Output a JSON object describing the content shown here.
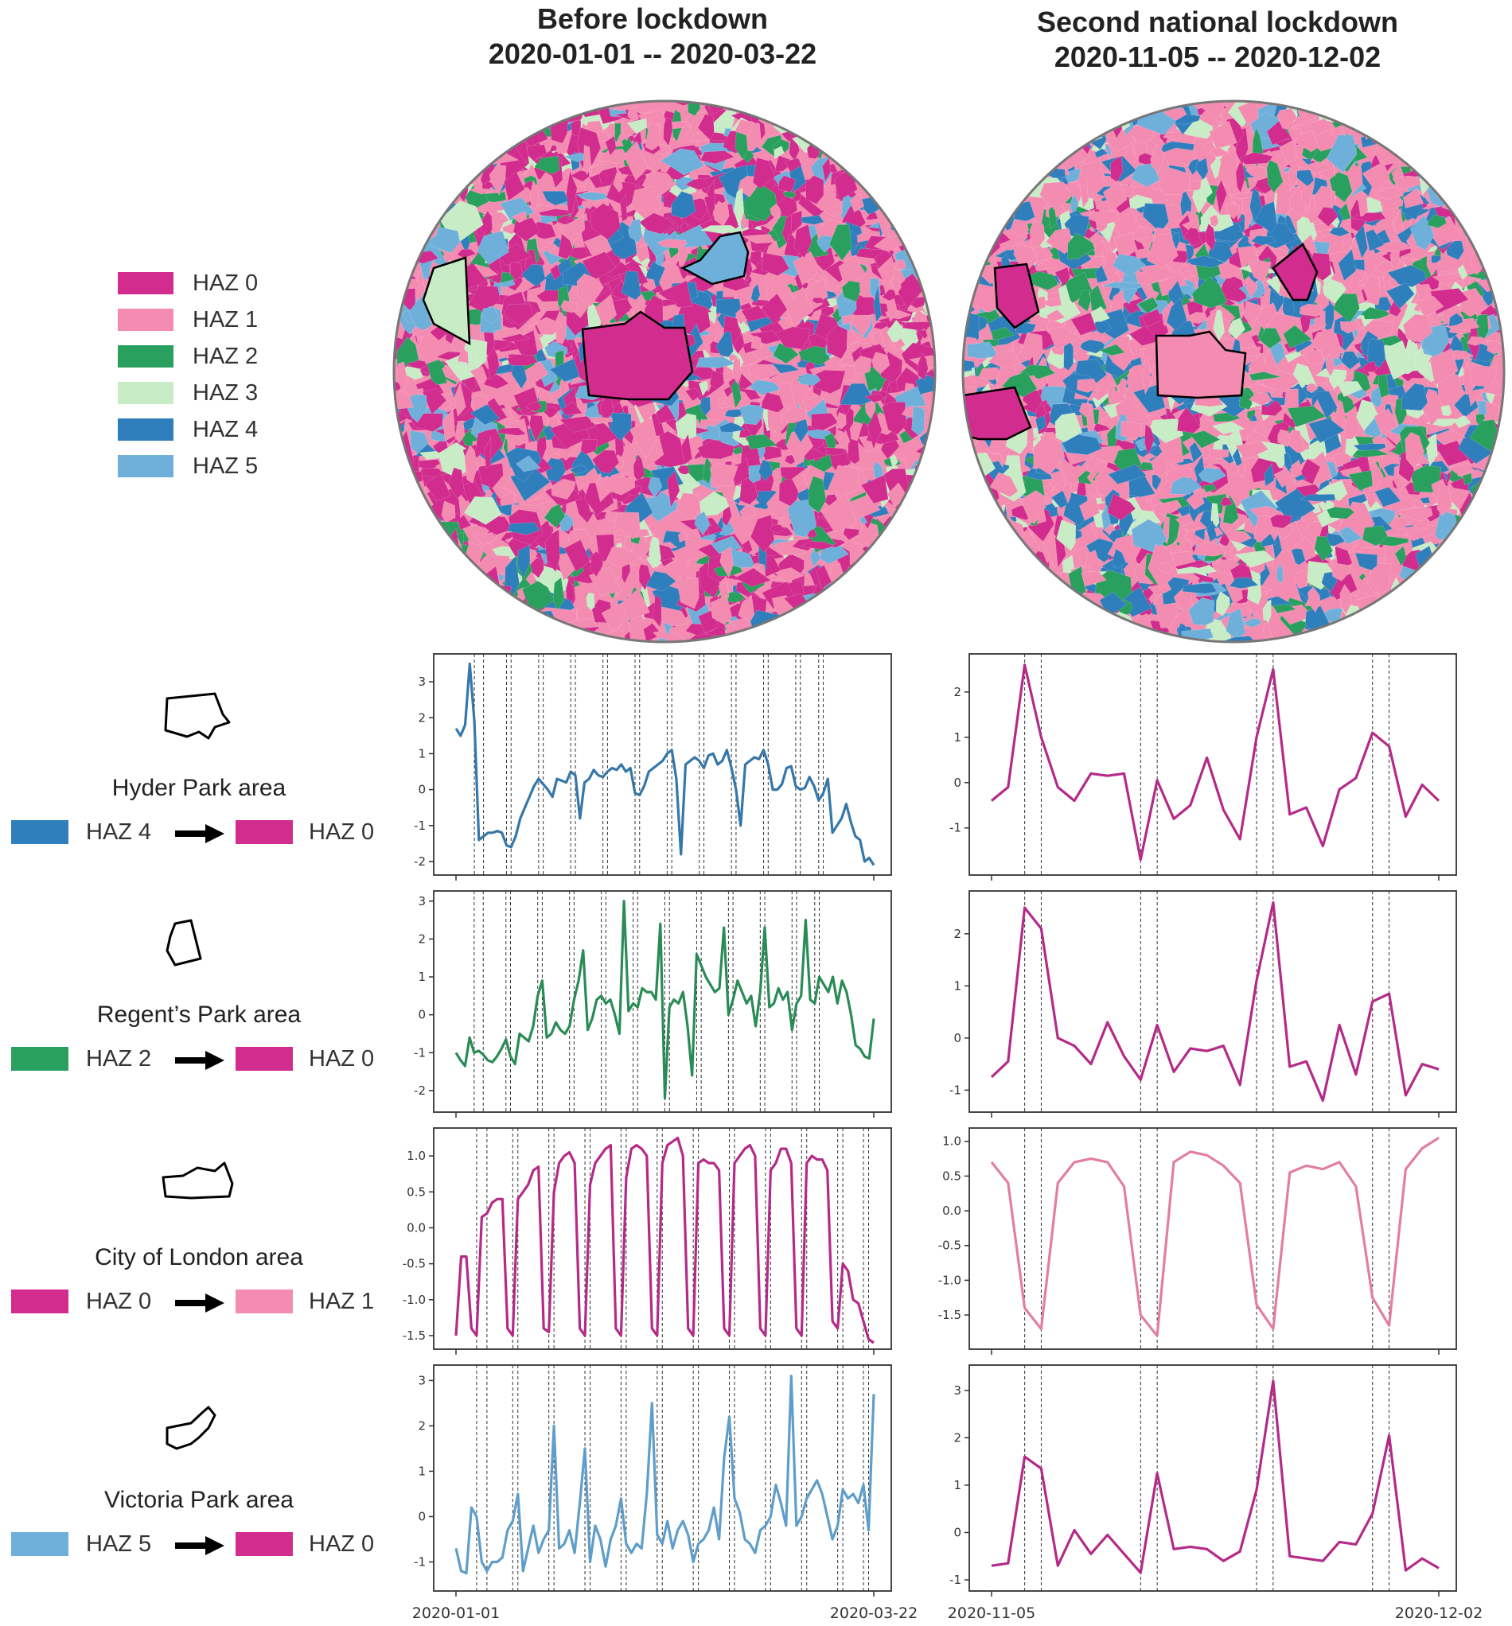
{
  "columns": [
    {
      "title_line1": "Before lockdown",
      "title_line2": "2020-01-01 -- 2020-03-22"
    },
    {
      "title_line1": "Second national lockdown",
      "title_line2": "2020-11-05 -- 2020-12-02"
    }
  ],
  "legend": [
    {
      "label": "HAZ 0",
      "color": "#d12c8e"
    },
    {
      "label": "HAZ 1",
      "color": "#f48bb0"
    },
    {
      "label": "HAZ 2",
      "color": "#2aa05e"
    },
    {
      "label": "HAZ 3",
      "color": "#c8ecc6"
    },
    {
      "label": "HAZ 4",
      "color": "#2f7fbd"
    },
    {
      "label": "HAZ 5",
      "color": "#6fb0db"
    }
  ],
  "areas": [
    {
      "name": "Hyder Park area",
      "from_label": "HAZ 4",
      "from_color": "#2f7fbd",
      "to_label": "HAZ 0",
      "to_color": "#d12c8e"
    },
    {
      "name": "Regent’s Park area",
      "from_label": "HAZ 2",
      "from_color": "#2aa05e",
      "to_label": "HAZ 0",
      "to_color": "#d12c8e"
    },
    {
      "name": "City of London area",
      "from_label": "HAZ 0",
      "from_color": "#d12c8e",
      "to_label": "HAZ 1",
      "to_color": "#f48bb0"
    },
    {
      "name": "Victoria Park area",
      "from_label": "HAZ 5",
      "from_color": "#6fb0db",
      "to_label": "HAZ 0",
      "to_color": "#d12c8e"
    }
  ],
  "maps": [
    {
      "type": "map",
      "description_colors": [
        "#d12c8e",
        "#f48bb0",
        "#2aa05e",
        "#c8ecc6",
        "#2f7fbd",
        "#6fb0db"
      ]
    },
    {
      "type": "map",
      "description_colors": [
        "#d12c8e",
        "#f48bb0",
        "#2aa05e",
        "#c8ecc6",
        "#2f7fbd",
        "#6fb0db"
      ]
    }
  ],
  "chart_data": [
    {
      "type": "line",
      "panel": "left",
      "row": 0,
      "series_color": "#3577a8",
      "x_start": "2020-01-01",
      "x_end": "2020-03-22",
      "xtick_labels": [
        "2020-01-01",
        "2020-03-22"
      ],
      "ylim": [
        -2.2,
        3.6
      ],
      "yticks": [
        -2,
        -1,
        0,
        1,
        2,
        3
      ],
      "vlines": [
        4,
        6,
        11,
        12,
        18,
        19,
        25,
        26,
        32,
        33,
        39,
        40,
        46,
        47,
        53,
        54,
        60,
        61,
        67,
        68,
        74,
        75,
        79,
        80
      ],
      "values": [
        1.7,
        1.5,
        1.8,
        3.5,
        1.9,
        -1.4,
        -1.3,
        -1.2,
        -1.2,
        -1.15,
        -1.2,
        -1.55,
        -1.6,
        -1.3,
        -0.8,
        -0.5,
        -0.2,
        0.1,
        0.3,
        0.15,
        0.0,
        -0.2,
        0.3,
        0.25,
        0.2,
        0.5,
        0.4,
        -0.8,
        0.2,
        0.3,
        0.55,
        0.4,
        0.35,
        0.5,
        0.6,
        0.55,
        0.7,
        0.5,
        0.6,
        -0.1,
        -0.15,
        0.1,
        0.5,
        0.6,
        0.7,
        0.8,
        1.0,
        1.1,
        0.3,
        -1.8,
        0.7,
        0.8,
        0.9,
        0.8,
        0.6,
        0.95,
        1.0,
        0.7,
        0.8,
        1.1,
        0.6,
        0.0,
        -1.0,
        0.7,
        0.8,
        0.9,
        0.85,
        1.1,
        0.7,
        0.0,
        0.0,
        0.15,
        0.6,
        0.65,
        0.1,
        0.0,
        0.05,
        0.35,
        0.1,
        -0.3,
        -0.1,
        0.3,
        -1.2,
        -1.0,
        -0.8,
        -0.4,
        -0.9,
        -1.3,
        -1.4,
        -2.0,
        -1.9,
        -2.1
      ]
    },
    {
      "type": "line",
      "panel": "left",
      "row": 1,
      "series_color": "#2a8c55",
      "x_start": "2020-01-01",
      "x_end": "2020-03-22",
      "xtick_labels": [
        "2020-01-01",
        "2020-03-22"
      ],
      "ylim": [
        -2.4,
        3.1
      ],
      "yticks": [
        -2,
        -1,
        0,
        1,
        2,
        3
      ],
      "vlines": [
        4,
        6,
        11,
        12,
        18,
        19,
        25,
        26,
        32,
        33,
        39,
        40,
        46,
        47,
        53,
        54,
        60,
        61,
        67,
        68,
        74,
        75,
        79,
        80
      ],
      "values": [
        -1.0,
        -1.2,
        -1.35,
        -0.6,
        -1.0,
        -0.95,
        -1.05,
        -1.2,
        -1.25,
        -1.1,
        -0.9,
        -0.65,
        -1.1,
        -1.3,
        -0.5,
        -0.6,
        -0.7,
        -0.3,
        0.5,
        0.9,
        -0.6,
        -0.5,
        -0.2,
        -0.4,
        -0.5,
        -0.3,
        0.4,
        0.9,
        1.7,
        -0.4,
        -0.1,
        0.4,
        0.5,
        0.3,
        0.4,
        0.0,
        -0.5,
        3.0,
        0.1,
        0.3,
        0.2,
        0.7,
        0.6,
        0.6,
        0.4,
        2.4,
        -2.2,
        0.2,
        0.4,
        0.3,
        0.6,
        -0.3,
        -1.6,
        1.6,
        1.3,
        1.0,
        0.8,
        0.6,
        0.7,
        2.3,
        0.0,
        0.4,
        0.9,
        0.6,
        0.3,
        0.5,
        -0.3,
        0.6,
        2.3,
        0.2,
        0.3,
        0.7,
        0.4,
        0.6,
        -0.4,
        0.3,
        0.5,
        2.5,
        0.4,
        0.3,
        1.0,
        0.8,
        0.6,
        1.0,
        0.3,
        0.9,
        0.6,
        0.0,
        -0.8,
        -0.9,
        -1.1,
        -1.15,
        -0.1
      ]
    },
    {
      "type": "line",
      "panel": "left",
      "row": 2,
      "series_color": "#b42a88",
      "x_start": "2020-01-01",
      "x_end": "2020-03-22",
      "xtick_labels": [
        "2020-01-01",
        "2020-03-22"
      ],
      "ylim": [
        -1.6,
        1.3
      ],
      "yticks": [
        -1.5,
        -1.0,
        -0.5,
        0.0,
        0.5,
        1.0
      ],
      "vlines": [
        4,
        6,
        11,
        12,
        18,
        19,
        25,
        26,
        32,
        33,
        39,
        40,
        46,
        47,
        53,
        54,
        60,
        61,
        67,
        68,
        74,
        75,
        79,
        80
      ],
      "values": [
        -1.5,
        -0.4,
        -0.4,
        -1.4,
        -1.5,
        0.15,
        0.2,
        0.35,
        0.4,
        0.4,
        -1.4,
        -1.5,
        0.4,
        0.5,
        0.6,
        0.8,
        0.85,
        -1.4,
        -1.45,
        0.5,
        0.9,
        1.0,
        1.05,
        0.9,
        -1.4,
        -1.5,
        0.6,
        0.9,
        1.0,
        1.1,
        1.15,
        -1.4,
        -1.5,
        0.7,
        1.1,
        1.15,
        1.1,
        1.0,
        -1.4,
        -1.5,
        0.9,
        1.15,
        1.2,
        1.25,
        1.0,
        -1.4,
        -1.5,
        0.9,
        0.95,
        0.9,
        0.9,
        0.8,
        -1.4,
        -1.5,
        0.9,
        1.0,
        1.1,
        1.15,
        1.0,
        -1.4,
        -1.5,
        0.8,
        0.9,
        1.1,
        1.1,
        0.9,
        -1.4,
        -1.5,
        0.9,
        1.0,
        0.95,
        0.95,
        0.8,
        -1.3,
        -1.4,
        -0.5,
        -0.6,
        -1.0,
        -1.05,
        -1.3,
        -1.55,
        -1.6
      ]
    },
    {
      "type": "line",
      "panel": "left",
      "row": 3,
      "series_color": "#5f9ec9",
      "x_start": "2020-01-01",
      "x_end": "2020-03-22",
      "xtick_labels": [
        "2020-01-01",
        "2020-03-22"
      ],
      "ylim": [
        -1.5,
        3.2
      ],
      "yticks": [
        -1,
        0,
        1,
        2,
        3
      ],
      "vlines": [
        4,
        6,
        11,
        12,
        18,
        19,
        25,
        26,
        32,
        33,
        39,
        40,
        46,
        47,
        53,
        54,
        60,
        61,
        67,
        68,
        74,
        75,
        79,
        80
      ],
      "values": [
        -0.7,
        -1.2,
        -1.25,
        0.2,
        0.0,
        -1.0,
        -1.2,
        -1.0,
        -1.0,
        -0.9,
        -0.3,
        -0.1,
        0.5,
        -1.2,
        -0.7,
        -0.2,
        -0.8,
        -0.5,
        -0.3,
        2.0,
        -0.7,
        -0.6,
        -0.3,
        -0.8,
        0.3,
        1.5,
        -1.0,
        -0.2,
        -0.5,
        -1.1,
        -0.5,
        -0.2,
        0.4,
        -0.6,
        -0.8,
        -0.6,
        -0.7,
        0.5,
        2.5,
        -0.4,
        -0.6,
        -0.1,
        -0.7,
        -0.3,
        -0.1,
        -0.4,
        -1.0,
        -0.6,
        -0.5,
        -0.3,
        0.2,
        -0.5,
        1.3,
        2.2,
        0.4,
        0.1,
        -0.5,
        -0.6,
        -0.8,
        -0.3,
        -0.2,
        0.0,
        0.7,
        0.3,
        -0.2,
        3.1,
        -0.2,
        0.0,
        0.4,
        0.6,
        0.8,
        0.5,
        0.0,
        -0.5,
        -0.2,
        0.6,
        0.4,
        0.5,
        0.3,
        0.7,
        -0.3,
        2.7
      ]
    },
    {
      "type": "line",
      "panel": "right",
      "row": 0,
      "series_color": "#b42a88",
      "x_start": "2020-11-05",
      "x_end": "2020-12-02",
      "xtick_labels": [
        "2020-11-05",
        "2020-12-02"
      ],
      "ylim": [
        -1.9,
        2.7
      ],
      "yticks": [
        -1,
        0,
        1,
        2
      ],
      "vlines": [
        2,
        3,
        9,
        10,
        16,
        17,
        23,
        24
      ],
      "values": [
        -0.4,
        -0.1,
        2.6,
        1.0,
        -0.1,
        -0.4,
        0.2,
        0.15,
        0.2,
        -1.7,
        0.05,
        -0.8,
        -0.5,
        0.55,
        -0.6,
        -1.25,
        1.0,
        2.5,
        -0.7,
        -0.55,
        -1.4,
        -0.15,
        0.1,
        1.1,
        0.8,
        -0.75,
        -0.05,
        -0.4
      ]
    },
    {
      "type": "line",
      "panel": "right",
      "row": 1,
      "series_color": "#b42a88",
      "x_start": "2020-11-05",
      "x_end": "2020-12-02",
      "xtick_labels": [
        "2020-11-05",
        "2020-12-02"
      ],
      "ylim": [
        -1.3,
        2.7
      ],
      "yticks": [
        -1,
        0,
        1,
        2
      ],
      "vlines": [
        2,
        3,
        9,
        10,
        16,
        17,
        23,
        24
      ],
      "values": [
        -0.75,
        -0.45,
        2.5,
        2.1,
        0.0,
        -0.15,
        -0.5,
        0.3,
        -0.35,
        -0.8,
        0.25,
        -0.65,
        -0.2,
        -0.25,
        -0.15,
        -0.9,
        1.1,
        2.6,
        -0.55,
        -0.45,
        -1.2,
        0.25,
        -0.7,
        0.7,
        0.85,
        -1.1,
        -0.5,
        -0.6
      ]
    },
    {
      "type": "line",
      "panel": "right",
      "row": 2,
      "series_color": "#e27ea0",
      "x_start": "2020-11-05",
      "x_end": "2020-12-02",
      "xtick_labels": [
        "2020-11-05",
        "2020-12-02"
      ],
      "ylim": [
        -1.9,
        1.1
      ],
      "yticks": [
        -1.5,
        -1.0,
        -0.5,
        0.0,
        0.5,
        1.0
      ],
      "vlines": [
        2,
        3,
        9,
        10,
        16,
        17,
        23,
        24
      ],
      "values": [
        0.7,
        0.4,
        -1.4,
        -1.7,
        0.4,
        0.7,
        0.75,
        0.7,
        0.35,
        -1.5,
        -1.8,
        0.7,
        0.85,
        0.8,
        0.65,
        0.4,
        -1.35,
        -1.7,
        0.55,
        0.65,
        0.6,
        0.7,
        0.35,
        -1.25,
        -1.65,
        0.6,
        0.9,
        1.05
      ]
    },
    {
      "type": "line",
      "panel": "right",
      "row": 3,
      "series_color": "#b42a88",
      "x_start": "2020-11-05",
      "x_end": "2020-12-02",
      "xtick_labels": [
        "2020-11-05",
        "2020-12-02"
      ],
      "ylim": [
        -1.1,
        3.4
      ],
      "yticks": [
        -1,
        0,
        1,
        2,
        3
      ],
      "vlines": [
        2,
        3,
        9,
        10,
        16,
        17,
        23,
        24
      ],
      "values": [
        -0.7,
        -0.65,
        1.6,
        1.35,
        -0.7,
        0.05,
        -0.45,
        -0.05,
        -0.45,
        -0.85,
        1.25,
        -0.35,
        -0.3,
        -0.35,
        -0.6,
        -0.4,
        0.9,
        3.2,
        -0.5,
        -0.55,
        -0.6,
        -0.2,
        -0.25,
        0.4,
        2.05,
        -0.8,
        -0.55,
        -0.75
      ]
    }
  ]
}
